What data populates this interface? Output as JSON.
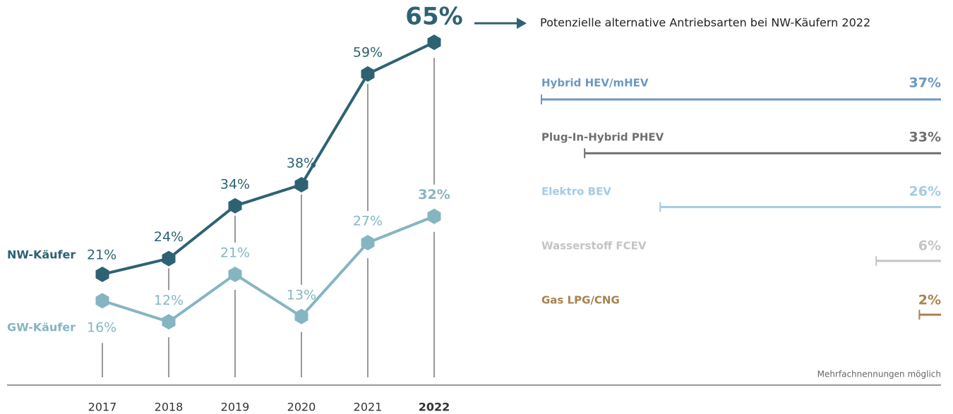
{
  "chart_data": [
    {
      "type": "line",
      "categories": [
        "2017",
        "2018",
        "2019",
        "2020",
        "2021",
        "2022"
      ],
      "series": [
        {
          "name": "NW-Käufer",
          "color": "#2e6272",
          "values": [
            21,
            24,
            34,
            38,
            59,
            65
          ],
          "value_labels": [
            "21%",
            "24%",
            "34%",
            "38%",
            "59%",
            "65%"
          ]
        },
        {
          "name": "GW-Käufer",
          "color": "#86b5c2",
          "values": [
            16,
            12,
            21,
            13,
            27,
            32
          ],
          "value_labels": [
            "16%",
            "12%",
            "21%",
            "13%",
            "27%",
            "32%"
          ]
        }
      ]
    },
    {
      "type": "bar",
      "title": "Potenzielle alternative Antriebsarten bei NW-Käufern 2022",
      "note": "Mehrfachnennungen möglich",
      "categories": [
        "Hybrid HEV/mHEV",
        "Plug-In-Hybrid PHEV",
        "Elektro BEV",
        "Wasserstoff FCEV",
        "Gas LPG/CNG"
      ],
      "values": [
        37,
        33,
        26,
        6,
        2
      ],
      "value_labels": [
        "37%",
        "33%",
        "26%",
        "6%",
        "2%"
      ],
      "colors": [
        "#6b98c0",
        "#6f6f6f",
        "#a4cbe6",
        "#c4c4c4",
        "#a9824f"
      ]
    }
  ]
}
